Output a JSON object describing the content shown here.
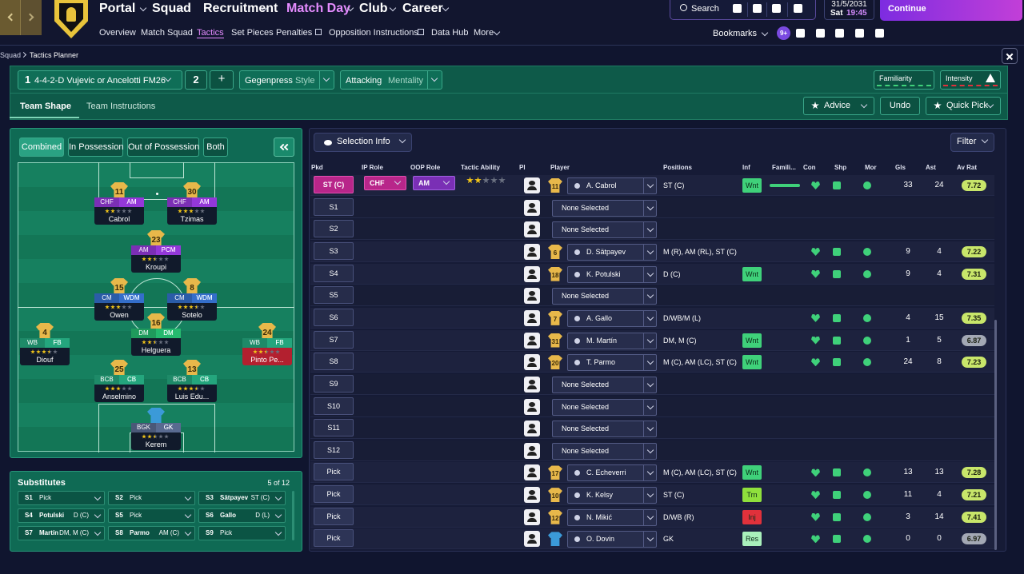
{
  "nav": {
    "menu": [
      "Portal",
      "Squad",
      "Recruitment",
      "Match Day",
      "Club",
      "Career"
    ],
    "submenu": [
      "Overview",
      "Match Squad",
      "Tactics",
      "Set Pieces",
      "Penalties",
      "Opposition Instructions",
      "Data Hub",
      "More"
    ],
    "search": "Search",
    "bookmarks": "Bookmarks",
    "notifications": "9+",
    "date": "31/5/2031",
    "day": "Sat",
    "time": "19:45",
    "continue": "Continue"
  },
  "breadcrumb": [
    "Squad",
    "Tactics Planner"
  ],
  "tactic": {
    "slot": "1",
    "name": "4-4-2-D Vujevic or Ancelotti FM26",
    "other_slot": "2",
    "add": "+",
    "style": "Gegenpress",
    "style_label": "Style",
    "mentality": "Attacking",
    "mentality_label": "Mentality",
    "familiarity": "Familiarity",
    "intensity": "Intensity"
  },
  "tabs": [
    "Team Shape",
    "Team Instructions"
  ],
  "actions": [
    "Advice",
    "Undo",
    "Quick Pick"
  ],
  "shape_filters": [
    "Combined",
    "In Possession",
    "Out of Possession",
    "Both"
  ],
  "pitch_players": [
    {
      "number": "11",
      "roles": [
        "CHF",
        "AM"
      ],
      "name": "Cabrol",
      "stars": 2,
      "color": "#7b2fb5"
    },
    {
      "number": "30",
      "roles": [
        "CHF",
        "AM"
      ],
      "name": "Tzimas",
      "stars": 3,
      "color": "#7b2fb5"
    },
    {
      "number": "23",
      "roles": [
        "AM",
        "PCM"
      ],
      "name": "Kroupi",
      "stars": 2.5,
      "color": "#7b2fb5"
    },
    {
      "number": "15",
      "roles": [
        "CM",
        "WDM"
      ],
      "name": "Owen",
      "stars": 3,
      "color": "#2b5ca8"
    },
    {
      "number": "8",
      "roles": [
        "CM",
        "WDM"
      ],
      "name": "Sotelo",
      "stars": 3.5,
      "color": "#2b5ca8"
    },
    {
      "number": "16",
      "roles": [
        "DM",
        "DM"
      ],
      "name": "Helguera",
      "stars": 2.5,
      "color": "#1f9a5c"
    },
    {
      "number": "4",
      "roles": [
        "WB",
        "FB"
      ],
      "name": "Diouf",
      "stars": 3.5,
      "color": "#1e8a68"
    },
    {
      "number": "24",
      "roles": [
        "WB",
        "FB"
      ],
      "name": "Pinto Pe...",
      "stars": 2.5,
      "color": "#1e8a68",
      "highlight": "#b3202f"
    },
    {
      "number": "25",
      "roles": [
        "BCB",
        "CB"
      ],
      "name": "Anselmino",
      "stars": 3,
      "color": "#1e8a68"
    },
    {
      "number": "13",
      "roles": [
        "BCB",
        "CB"
      ],
      "name": "Luis Edu...",
      "stars": 3.5,
      "color": "#1e8a68"
    },
    {
      "roles": [
        "BGK",
        "GK"
      ],
      "name": "Kerem",
      "stars": 2.5,
      "color": "#4a5878",
      "shirt_color": "#3b9ad8"
    }
  ],
  "substitutes": {
    "title": "Substitutes",
    "count": "5 of 12",
    "slots": [
      {
        "slot": "S1",
        "player": "Pick"
      },
      {
        "slot": "S2",
        "player": "Pick"
      },
      {
        "slot": "S3",
        "player": "Sätpayev",
        "positions": "ST (C)"
      },
      {
        "slot": "S4",
        "player": "Potulski",
        "positions": "D (C)"
      },
      {
        "slot": "S5",
        "player": "Pick"
      },
      {
        "slot": "S6",
        "player": "Gallo",
        "positions": "D (L)"
      },
      {
        "slot": "S7",
        "player": "Martín",
        "positions": "DM, M (C)"
      },
      {
        "slot": "S8",
        "player": "Parmo",
        "positions": "AM (C)"
      },
      {
        "slot": "S9",
        "player": "Pick"
      }
    ]
  },
  "table": {
    "selection_info": "Selection Info",
    "filter": "Filter",
    "columns": [
      "Pkd",
      "IP Role",
      "OOP Role",
      "Tactic Ability",
      "Pl",
      "Player",
      "Positions",
      "Inf",
      "Famili...",
      "Con",
      "Shp",
      "Mor",
      "Gls",
      "Ast",
      "Av Rat"
    ],
    "rows": [
      {
        "pkd": "ST (C)",
        "ip_role": "CHF",
        "oop_role": "AM",
        "ability": 2,
        "number": "11",
        "player": "A. Cabrol",
        "positions": "ST (C)",
        "inf": {
          "label": "Wnt",
          "color": "#3fd17a"
        },
        "gls": 33,
        "ast": 24,
        "rating": 7.72
      },
      {
        "pkd": "S1",
        "player": "None Selected"
      },
      {
        "pkd": "S2",
        "player": "None Selected"
      },
      {
        "pkd": "S3",
        "number": "6",
        "player": "D. Sätpayev",
        "positions": "M (R), AM (RL), ST (C)",
        "gls": 9,
        "ast": 4,
        "rating": 7.22
      },
      {
        "pkd": "S4",
        "number": "18",
        "player": "K. Potulski",
        "positions": "D (C)",
        "inf": {
          "label": "Wnt",
          "color": "#3fd17a"
        },
        "gls": 9,
        "ast": 4,
        "rating": 7.31
      },
      {
        "pkd": "S5",
        "player": "None Selected"
      },
      {
        "pkd": "S6",
        "number": "7",
        "player": "A. Gallo",
        "positions": "D/WB/M (L)",
        "gls": 4,
        "ast": 15,
        "rating": 7.35
      },
      {
        "pkd": "S7",
        "number": "31",
        "player": "M. Martín",
        "positions": "DM, M (C)",
        "inf": {
          "label": "Wnt",
          "color": "#3fd17a"
        },
        "gls": 1,
        "ast": 5,
        "rating": 6.87
      },
      {
        "pkd": "S8",
        "number": "20",
        "player": "T. Parmo",
        "positions": "M (C), AM (LC), ST (C)",
        "inf": {
          "label": "Wnt",
          "color": "#3fd17a"
        },
        "gls": 24,
        "ast": 8,
        "rating": 7.23
      },
      {
        "pkd": "S9",
        "player": "None Selected"
      },
      {
        "pkd": "S10",
        "player": "None Selected"
      },
      {
        "pkd": "S11",
        "player": "None Selected"
      },
      {
        "pkd": "S12",
        "player": "None Selected"
      },
      {
        "pkd": "Pick",
        "number": "17",
        "player": "C. Echeverri",
        "positions": "M (C), AM (LC), ST (C)",
        "inf": {
          "label": "Wnt",
          "color": "#3fd17a"
        },
        "gls": 13,
        "ast": 13,
        "rating": 7.28
      },
      {
        "pkd": "Pick",
        "number": "10",
        "player": "K. Kelsy",
        "positions": "ST (C)",
        "inf": {
          "label": "Trn",
          "color": "#8fe03c"
        },
        "gls": 11,
        "ast": 4,
        "rating": 7.21
      },
      {
        "pkd": "Pick",
        "number": "12",
        "player": "N. Mikić",
        "positions": "D/WB (R)",
        "inf": {
          "label": "Inj",
          "color": "#e0313b"
        },
        "gls": 3,
        "ast": 14,
        "rating": 7.41
      },
      {
        "pkd": "Pick",
        "shirt_color": "#3b9ad8",
        "player": "O. Dovin",
        "positions": "GK",
        "inf": {
          "label": "Res",
          "color": "#a9f0bb"
        },
        "gls": 0,
        "ast": 0,
        "rating": 6.97
      }
    ]
  }
}
